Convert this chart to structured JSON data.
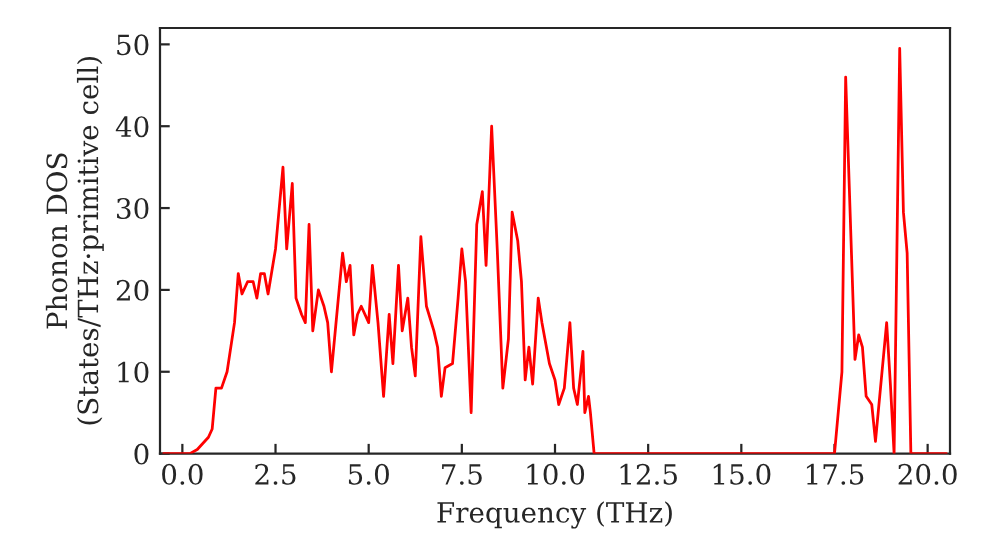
{
  "chart_data": {
    "type": "line",
    "xlabel": "Frequency (THz)",
    "ylabel": "Phonon DOS\n(States/THz·primitive cell)",
    "x": [
      -0.5,
      0.2,
      0.4,
      0.7,
      0.8,
      0.9,
      1.05,
      1.2,
      1.4,
      1.5,
      1.6,
      1.75,
      1.9,
      2.0,
      2.1,
      2.2,
      2.3,
      2.5,
      2.7,
      2.8,
      2.95,
      3.05,
      3.2,
      3.3,
      3.4,
      3.5,
      3.65,
      3.8,
      3.9,
      4.0,
      4.3,
      4.4,
      4.5,
      4.6,
      4.7,
      4.8,
      5.0,
      5.1,
      5.25,
      5.4,
      5.55,
      5.65,
      5.8,
      5.9,
      6.05,
      6.15,
      6.25,
      6.4,
      6.55,
      6.75,
      6.85,
      6.95,
      7.05,
      7.25,
      7.4,
      7.5,
      7.6,
      7.75,
      7.9,
      8.05,
      8.15,
      8.3,
      8.45,
      8.6,
      8.75,
      8.85,
      9.0,
      9.1,
      9.2,
      9.3,
      9.4,
      9.55,
      9.65,
      9.85,
      10.0,
      10.1,
      10.25,
      10.4,
      10.5,
      10.6,
      10.75,
      10.8,
      10.9,
      10.95,
      11.05,
      17.5,
      17.7,
      17.8,
      18.05,
      18.15,
      18.25,
      18.35,
      18.5,
      18.6,
      18.9,
      19.0,
      19.1,
      19.25,
      19.35,
      19.45,
      19.55,
      20.5
    ],
    "series": [
      {
        "color": "#ff0000",
        "values": [
          0,
          0,
          0.5,
          2,
          3,
          8,
          8,
          10,
          16,
          22,
          19.5,
          21,
          21,
          19,
          22,
          22,
          19.5,
          25,
          35,
          25,
          33,
          19,
          17,
          16,
          28,
          15,
          20,
          18,
          16,
          10,
          24.5,
          21,
          23,
          14.5,
          17,
          18,
          16,
          23,
          16,
          7,
          17,
          11,
          23,
          15,
          19,
          13,
          9.5,
          26.5,
          18,
          15,
          13,
          7,
          10.5,
          11,
          19,
          25,
          21,
          5,
          28,
          32,
          23,
          40,
          25,
          8,
          14,
          29.5,
          26,
          21,
          9,
          13,
          8.5,
          19,
          16,
          11,
          9,
          6,
          8,
          16,
          8,
          6,
          12.5,
          5,
          7,
          5,
          0,
          0,
          10,
          46,
          11.5,
          14.5,
          13,
          7,
          6,
          1.5,
          16,
          8.5,
          0,
          49.5,
          29.5,
          24.5,
          0,
          0
        ]
      }
    ],
    "xlim": [
      -0.6,
      20.6
    ],
    "ylim": [
      0,
      52
    ],
    "xticks": [
      {
        "value": 0,
        "label": "0.0"
      },
      {
        "value": 2.5,
        "label": "2.5"
      },
      {
        "value": 5,
        "label": "5.0"
      },
      {
        "value": 7.5,
        "label": "7.5"
      },
      {
        "value": 10,
        "label": "10.0"
      },
      {
        "value": 12.5,
        "label": "12.5"
      },
      {
        "value": 15,
        "label": "15.0"
      },
      {
        "value": 17.5,
        "label": "17.5"
      },
      {
        "value": 20,
        "label": "20.0"
      }
    ],
    "yticks": [
      0,
      10,
      20,
      30,
      40,
      50
    ],
    "grid": false,
    "marker": "none",
    "line_style": "solid"
  }
}
